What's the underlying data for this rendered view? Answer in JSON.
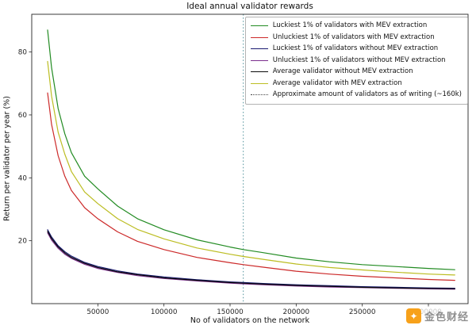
{
  "chart_data": {
    "type": "line",
    "title": "Ideal annual validator rewards",
    "xlabel": "No of validators on the network",
    "ylabel": "Return per validator per year (%)",
    "xlim": [
      0,
      330000
    ],
    "ylim": [
      0,
      92
    ],
    "x_ticks": [
      50000,
      100000,
      150000,
      200000,
      250000,
      300000
    ],
    "y_ticks": [
      20,
      40,
      60,
      80
    ],
    "grid": false,
    "legend_position": "upper right",
    "x": [
      12000,
      15000,
      20000,
      25000,
      30000,
      40000,
      50000,
      65000,
      80000,
      100000,
      125000,
      150000,
      160000,
      175000,
      200000,
      225000,
      250000,
      275000,
      300000,
      320000
    ],
    "series": [
      {
        "name": "Luckiest 1% of validators with MEV extraction",
        "color": "#228b22",
        "values": [
          87,
          75,
          62,
          54,
          48,
          40.5,
          36.5,
          31,
          27,
          23.5,
          20.3,
          18,
          17.2,
          16.2,
          14.5,
          13.3,
          12.4,
          11.8,
          11.2,
          10.8
        ]
      },
      {
        "name": "Unluckiest 1% of validators with MEV extraction",
        "color": "#cc2929",
        "values": [
          67,
          57,
          47,
          40.5,
          36,
          30.5,
          27,
          22.8,
          19.8,
          17.2,
          14.7,
          13,
          12.4,
          11.6,
          10.3,
          9.4,
          8.7,
          8.2,
          7.7,
          7.4
        ]
      },
      {
        "name": "Luckiest 1% of validators without MEV extraction",
        "color": "#191970",
        "values": [
          23.5,
          21.2,
          18.4,
          16.5,
          15.1,
          13.1,
          11.8,
          10.4,
          9.4,
          8.5,
          7.6,
          6.9,
          6.7,
          6.4,
          6.0,
          5.7,
          5.4,
          5.2,
          5.0,
          4.9
        ]
      },
      {
        "name": "Unluckiest 1% of validators without MEV extraction",
        "color": "#7b2f8e",
        "values": [
          22.5,
          20.2,
          17.6,
          15.7,
          14.4,
          12.5,
          11.2,
          9.9,
          8.9,
          8.0,
          7.2,
          6.5,
          6.3,
          6.0,
          5.6,
          5.3,
          5.1,
          4.9,
          4.7,
          4.6
        ]
      },
      {
        "name": "Average validator without MEV extraction",
        "color": "#0a0a0a",
        "values": [
          23.0,
          20.7,
          18.0,
          16.1,
          14.7,
          12.8,
          11.5,
          10.1,
          9.2,
          8.2,
          7.4,
          6.7,
          6.5,
          6.2,
          5.8,
          5.5,
          5.2,
          5.0,
          4.85,
          4.75
        ]
      },
      {
        "name": "Average validator with MEV extraction",
        "color": "#bcbd22",
        "values": [
          77,
          66,
          54.5,
          47.5,
          42,
          35.5,
          31.8,
          27,
          23.6,
          20.6,
          17.7,
          15.7,
          15,
          14.1,
          12.6,
          11.5,
          10.7,
          10,
          9.4,
          9.1
        ]
      }
    ],
    "annotation_line": {
      "label": "Approximate amount of validators as of writing (~160k)",
      "x": 160000,
      "color": "#4d8f99",
      "style": "dotted"
    }
  },
  "watermark": {
    "text": "金色财经",
    "icon": "golden-finance-logo"
  }
}
